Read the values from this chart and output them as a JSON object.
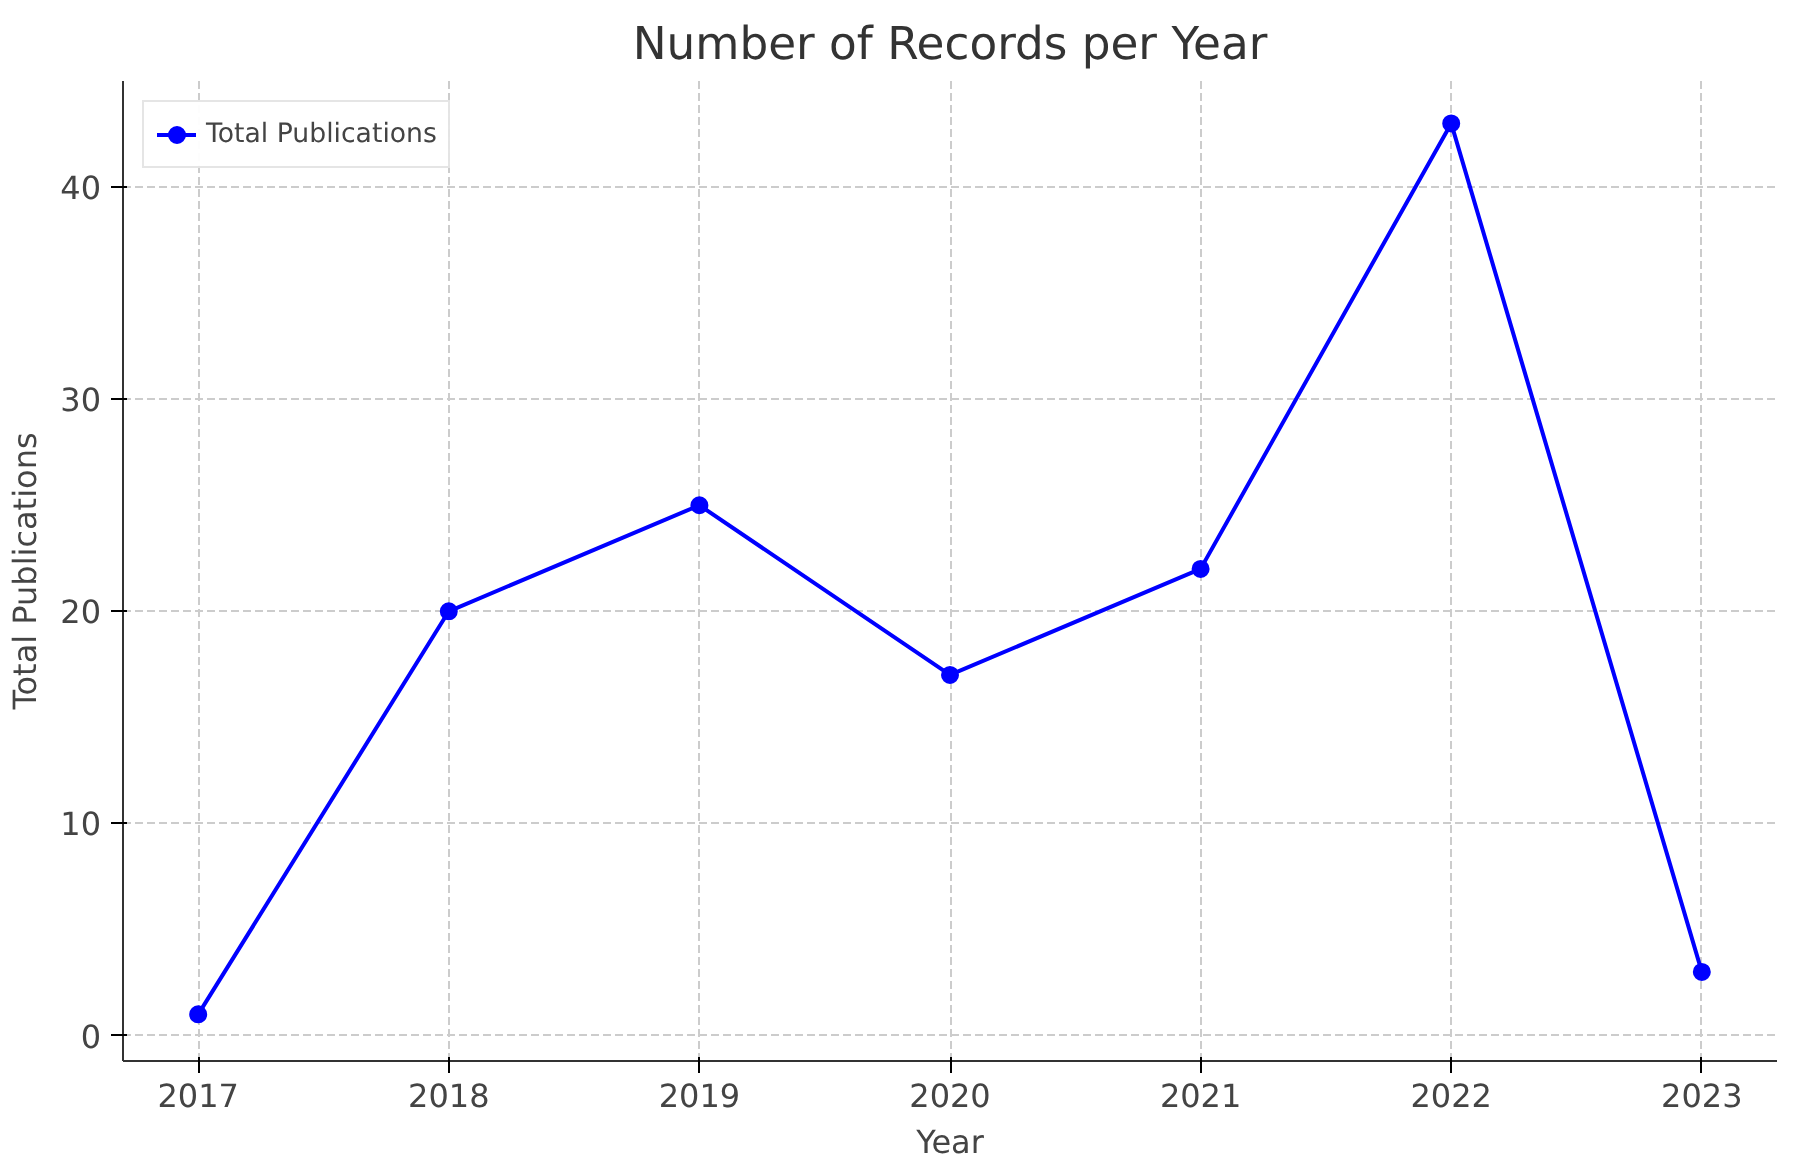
{
  "chart_data": {
    "type": "line",
    "title": "Number of Records per Year",
    "xlabel": "Year",
    "ylabel": "Total Publications",
    "x": [
      2017,
      2018,
      2019,
      2020,
      2021,
      2022,
      2023
    ],
    "series": [
      {
        "name": "Total Publications",
        "color": "#0000ff",
        "values": [
          1,
          20,
          25,
          17,
          22,
          43,
          3
        ]
      }
    ],
    "xlim": [
      2016.7,
      2023.3
    ],
    "xticks": [
      2017,
      2018,
      2019,
      2020,
      2021,
      2022,
      2023
    ],
    "ylim": [
      -1.2,
      45
    ],
    "yticks": [
      0,
      10,
      20,
      30,
      40
    ],
    "grid": true,
    "legend": "top left",
    "marker": "circle",
    "line_style": "solid"
  }
}
